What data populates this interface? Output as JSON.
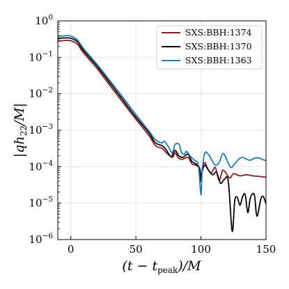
{
  "chart_data": {
    "type": "line",
    "title": "",
    "xlabel": "(t − t_peak)/M",
    "ylabel": "|q h_22 / M|",
    "xlim": [
      -10,
      150
    ],
    "ylim": [
      1e-06,
      1
    ],
    "yscale": "log",
    "grid": true,
    "legend_position": "top-right",
    "x_ticks": [
      0,
      50,
      100,
      150
    ],
    "y_ticks": [
      1e-06,
      1e-05,
      0.0001,
      0.001,
      0.01,
      0.1,
      1
    ],
    "y_tick_labels": [
      {
        "base": "10",
        "exp": "−6"
      },
      {
        "base": "10",
        "exp": "−5"
      },
      {
        "base": "10",
        "exp": "−4"
      },
      {
        "base": "10",
        "exp": "−3"
      },
      {
        "base": "10",
        "exp": "−2"
      },
      {
        "base": "10",
        "exp": "−1"
      },
      {
        "base": "10",
        "exp": "0"
      }
    ],
    "series": [
      {
        "name": "SXS:BBH:1374",
        "color": "#8b1a1a",
        "points": [
          [
            -10,
            0.27
          ],
          [
            -5,
            0.29
          ],
          [
            0,
            0.285
          ],
          [
            5,
            0.23
          ],
          [
            10,
            0.13
          ],
          [
            20,
            0.05
          ],
          [
            30,
            0.017
          ],
          [
            40,
            0.0058
          ],
          [
            50,
            0.002
          ],
          [
            60,
            0.00072
          ],
          [
            65,
            0.00038
          ],
          [
            70,
            0.00032
          ],
          [
            73,
            0.00025
          ],
          [
            78,
            0.00018
          ],
          [
            80,
            0.00024
          ],
          [
            83,
            0.00017
          ],
          [
            86,
            0.00016
          ],
          [
            90,
            0.00018
          ],
          [
            93,
            0.00012
          ],
          [
            96,
            0.00011
          ],
          [
            99,
            8.5e-05
          ],
          [
            100,
            4e-05
          ],
          [
            101,
            9e-05
          ],
          [
            103,
            0.00013
          ],
          [
            105,
            9e-05
          ],
          [
            108,
            6.8e-05
          ],
          [
            111,
            9.5e-05
          ],
          [
            114,
            4.2e-05
          ],
          [
            117,
            8e-05
          ],
          [
            122,
            4.9e-05
          ],
          [
            125,
            6.4e-05
          ],
          [
            130,
            5.6e-05
          ],
          [
            135,
            6e-05
          ],
          [
            140,
            5.6e-05
          ],
          [
            145,
            5.4e-05
          ],
          [
            150,
            5.1e-05
          ]
        ]
      },
      {
        "name": "SXS:BBH:1370",
        "color": "#000000",
        "points": [
          [
            -10,
            0.33
          ],
          [
            -5,
            0.34
          ],
          [
            0,
            0.335
          ],
          [
            5,
            0.27
          ],
          [
            10,
            0.15
          ],
          [
            20,
            0.058
          ],
          [
            30,
            0.02
          ],
          [
            40,
            0.0068
          ],
          [
            50,
            0.0023
          ],
          [
            60,
            0.00085
          ],
          [
            65,
            0.00045
          ],
          [
            70,
            0.00038
          ],
          [
            73,
            0.0003
          ],
          [
            77,
            0.00019
          ],
          [
            80,
            0.00028
          ],
          [
            83,
            0.0002
          ],
          [
            86,
            0.00018
          ],
          [
            90,
            0.00022
          ],
          [
            93,
            0.00014
          ],
          [
            96,
            0.00012
          ],
          [
            99,
            9e-05
          ],
          [
            100,
            4e-05
          ],
          [
            101,
            7.5e-05
          ],
          [
            103,
            0.00011
          ],
          [
            106,
            7.8e-05
          ],
          [
            109,
            6e-05
          ],
          [
            112,
            7e-05
          ],
          [
            115,
            3.5e-05
          ],
          [
            118,
            4.5e-05
          ],
          [
            121,
            4e-05
          ],
          [
            124,
            1.7e-06
          ],
          [
            126,
            1.2e-05
          ],
          [
            128,
            1.4e-05
          ],
          [
            130,
            8.8e-06
          ],
          [
            132,
            1.5e-05
          ],
          [
            134,
            1.7e-05
          ],
          [
            136,
            5.5e-06
          ],
          [
            138,
            1.4e-05
          ],
          [
            141,
            1.7e-05
          ],
          [
            143,
            4.4e-06
          ],
          [
            146,
            1.3e-05
          ],
          [
            148,
            1.5e-05
          ],
          [
            150,
            9.5e-06
          ]
        ]
      },
      {
        "name": "SXS:BBH:1363",
        "color": "#1f77b4",
        "points": [
          [
            -10,
            0.37
          ],
          [
            -5,
            0.39
          ],
          [
            0,
            0.385
          ],
          [
            5,
            0.3
          ],
          [
            10,
            0.17
          ],
          [
            20,
            0.065
          ],
          [
            30,
            0.023
          ],
          [
            40,
            0.008
          ],
          [
            50,
            0.0027
          ],
          [
            60,
            0.00095
          ],
          [
            65,
            0.00055
          ],
          [
            70,
            0.00045
          ],
          [
            72,
            0.0005
          ],
          [
            75,
            0.00035
          ],
          [
            78,
            0.00024
          ],
          [
            80,
            0.0004
          ],
          [
            83,
            0.00042
          ],
          [
            85,
            0.00025
          ],
          [
            87,
            0.00022
          ],
          [
            89,
            0.00026
          ],
          [
            92,
            0.00019
          ],
          [
            95,
            0.00015
          ],
          [
            98,
            0.00011
          ],
          [
            100,
            1.7e-05
          ],
          [
            101,
            8e-05
          ],
          [
            103,
            0.00024
          ],
          [
            106,
            0.00021
          ],
          [
            108,
            0.00016
          ],
          [
            111,
            0.00011
          ],
          [
            114,
            0.00013
          ],
          [
            117,
            0.00023
          ],
          [
            120,
            0.00015
          ],
          [
            123,
            9.5e-05
          ],
          [
            126,
            0.00012
          ],
          [
            129,
            0.00016
          ],
          [
            132,
            0.00018
          ],
          [
            135,
            0.00016
          ],
          [
            138,
            0.00015
          ],
          [
            141,
            0.00017
          ],
          [
            144,
            0.000175
          ],
          [
            147,
            0.00016
          ],
          [
            150,
            0.000145
          ]
        ]
      }
    ]
  }
}
